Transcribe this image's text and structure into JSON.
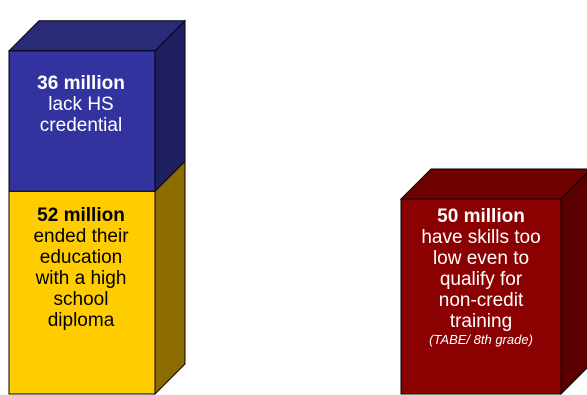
{
  "chart_data": {
    "type": "bar",
    "stacks": [
      {
        "segments": [
          {
            "value": 52,
            "unit": "million",
            "amount": "52 million",
            "lines": [
              "ended their",
              "education",
              "with a high",
              "school",
              "diploma"
            ],
            "color": "#FFCC00",
            "side_color": "#8C6B00",
            "top_color": "#FFE066"
          },
          {
            "value": 36,
            "unit": "million",
            "amount": "36 million",
            "lines": [
              "lack HS",
              "credential"
            ],
            "color": "#3333A0",
            "side_color": "#1F1F60",
            "top_color": "#2A2A78"
          }
        ]
      },
      {
        "segments": [
          {
            "value": 50,
            "unit": "million",
            "amount": "50 million",
            "lines": [
              "have skills too",
              "low even to",
              "qualify for",
              "non-credit",
              "training"
            ],
            "note": "(TABE/ 8th grade)",
            "color": "#8B0000",
            "side_color": "#5A0000",
            "top_color": "#6E0000"
          }
        ]
      }
    ]
  }
}
